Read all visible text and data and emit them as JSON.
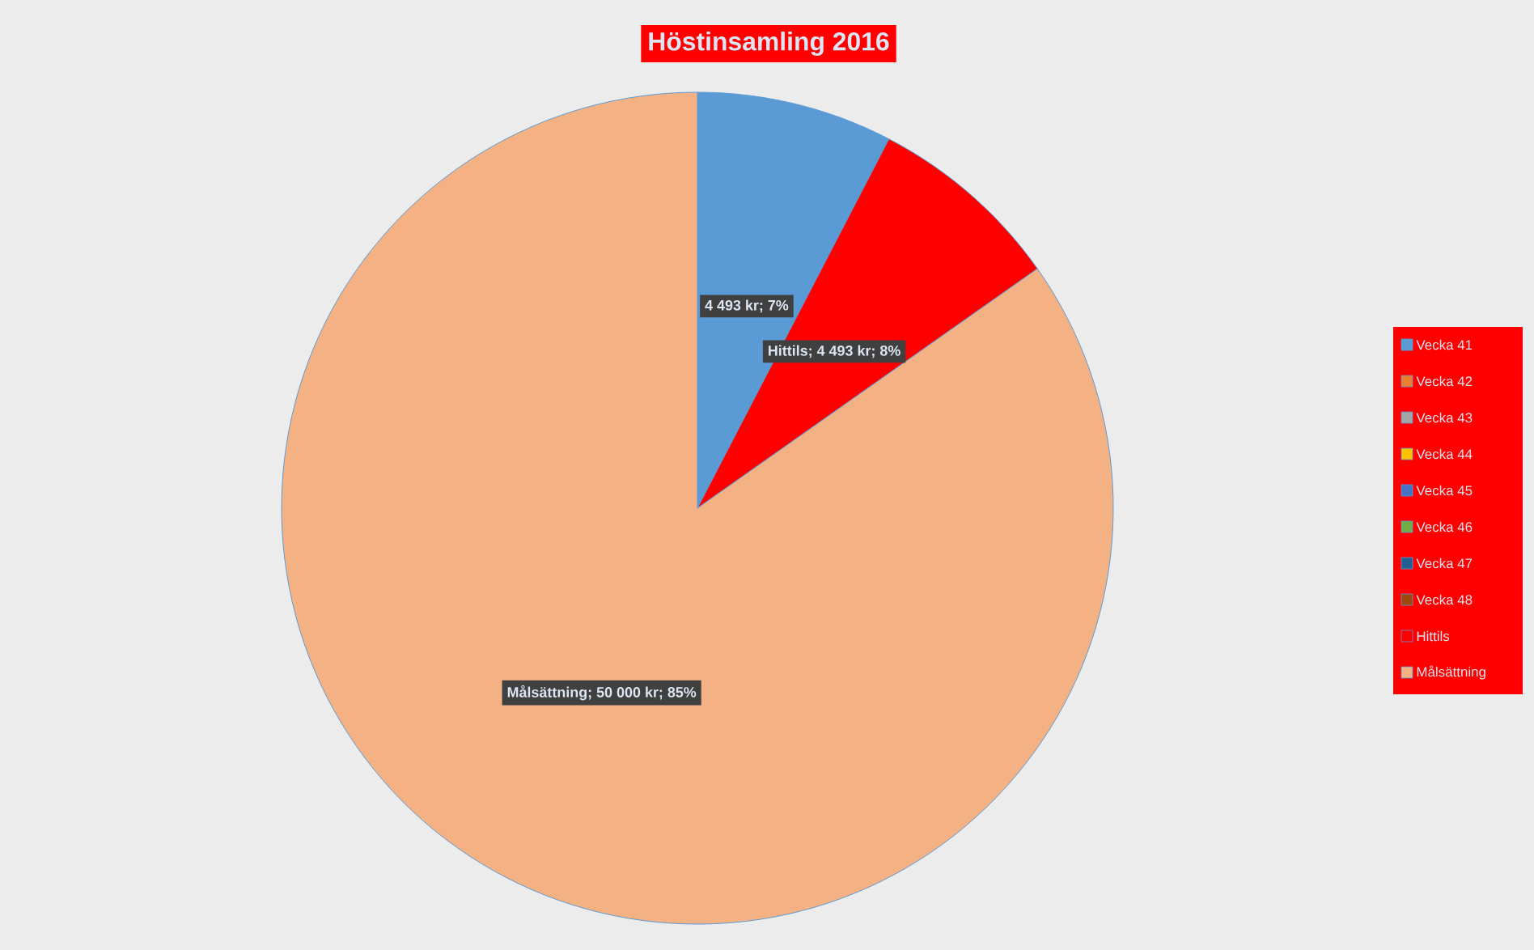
{
  "chart_data": {
    "type": "pie",
    "title": "Höstinsamling 2016",
    "categories": [
      "Vecka 41",
      "Vecka 42",
      "Vecka 43",
      "Vecka 44",
      "Vecka 45",
      "Vecka 46",
      "Vecka 47",
      "Vecka 48",
      "Hittils",
      "Målsättning"
    ],
    "values": [
      4493,
      0,
      0,
      0,
      0,
      0,
      0,
      0,
      4493,
      50000
    ],
    "colors": [
      "#5b9bd5",
      "#ed7d31",
      "#a5a5a5",
      "#ffc000",
      "#4472c4",
      "#70ad47",
      "#255e91",
      "#9e480e",
      "#ff0000",
      "#f4b183"
    ],
    "value_labels": [
      "4 493 kr; 7%",
      null,
      null,
      null,
      null,
      null,
      null,
      null,
      "Hittils; 4 493 kr; 8%",
      "Målsättning; 50 000 kr; 85%"
    ],
    "legend": "right"
  }
}
